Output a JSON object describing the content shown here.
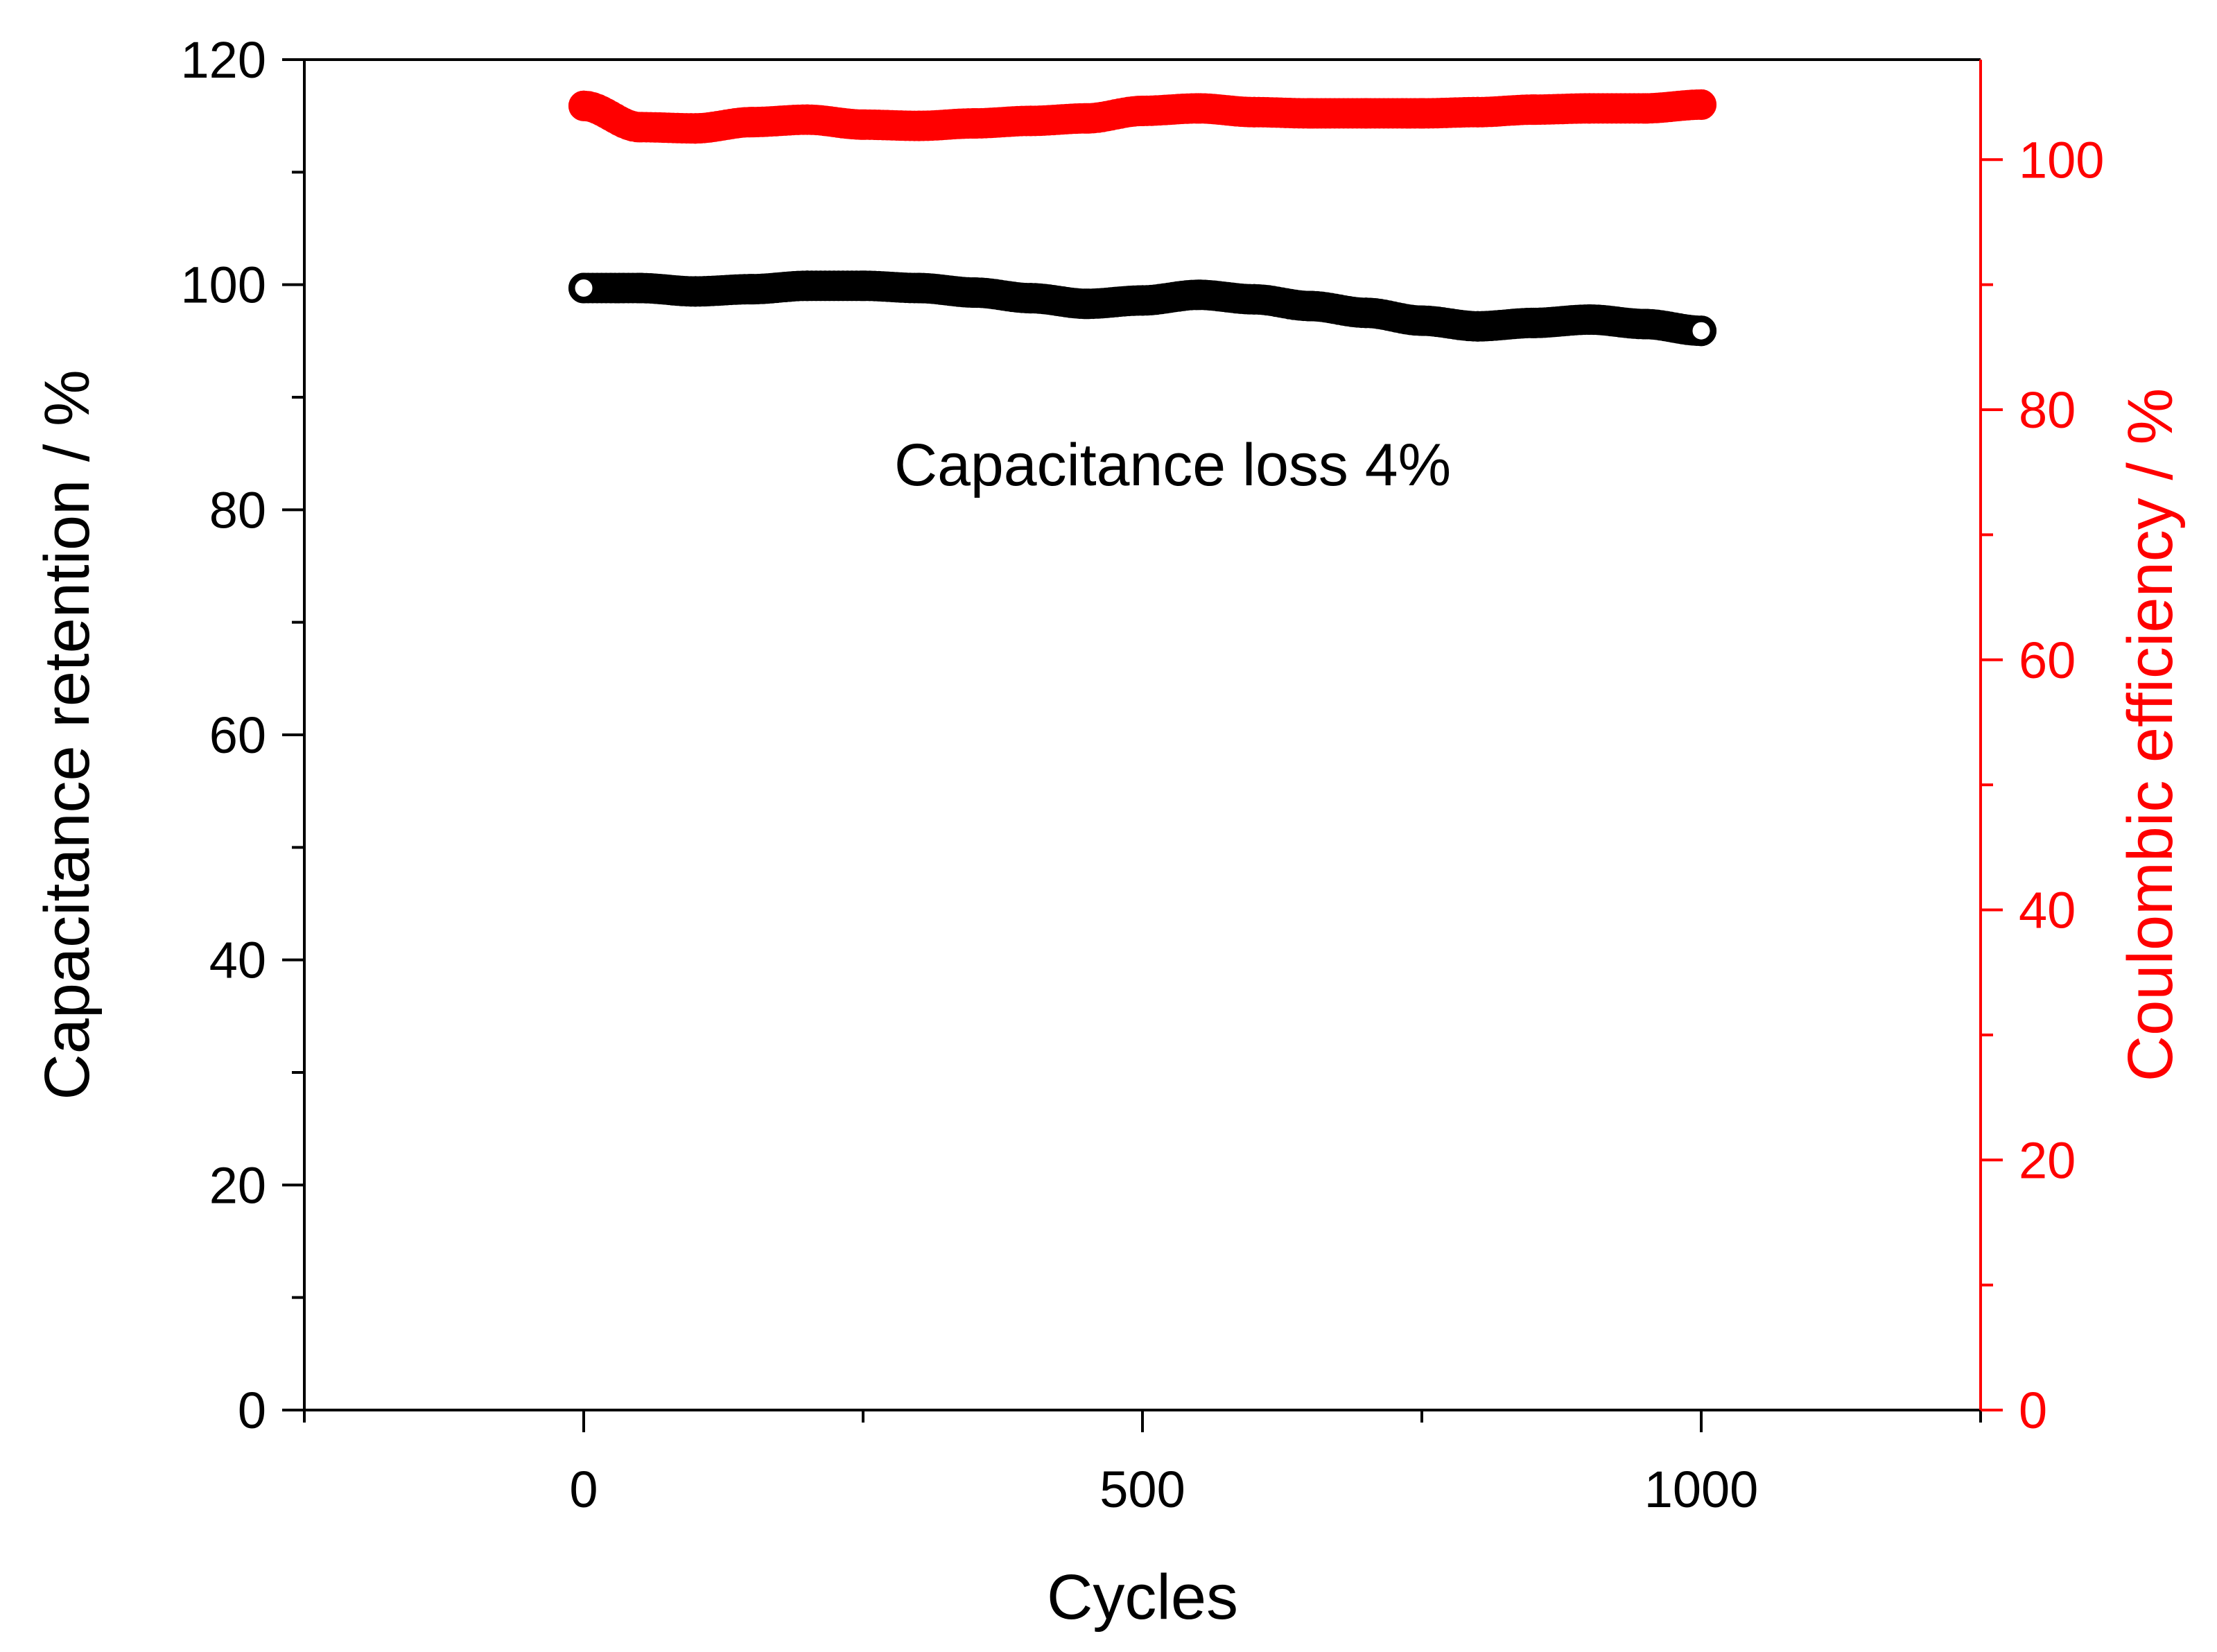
{
  "chart_data": {
    "type": "scatter",
    "xlabel": "Cycles",
    "ylabel": "Capacitance retention / %",
    "y2label": "Coulombic efficiency / %",
    "annotation": "Capacitance loss 4%",
    "xlim": [
      -250,
      1250
    ],
    "ylim": [
      0,
      120
    ],
    "y2lim": [
      0,
      108
    ],
    "xticks": [
      0,
      500,
      1000
    ],
    "yticks": [
      0,
      20,
      40,
      60,
      80,
      100,
      120
    ],
    "y2ticks": [
      0,
      20,
      40,
      60,
      80,
      100
    ],
    "grid": false,
    "colors": {
      "retention": "#000000",
      "efficiency": "#ff0000",
      "axes": "#000000"
    },
    "series": [
      {
        "axis": "left",
        "color": "#000000",
        "x": [
          0,
          50,
          100,
          150,
          200,
          250,
          300,
          350,
          400,
          450,
          500,
          550,
          600,
          650,
          700,
          750,
          800,
          850,
          900,
          950,
          1000
        ],
        "y": [
          99.7,
          99.7,
          99.4,
          99.6,
          99.9,
          99.9,
          99.7,
          99.3,
          98.8,
          98.3,
          98.6,
          99.1,
          98.7,
          98.1,
          97.5,
          96.8,
          96.3,
          96.6,
          96.9,
          96.5,
          95.9
        ]
      },
      {
        "axis": "right",
        "color": "#ff0000",
        "x": [
          0,
          50,
          100,
          150,
          200,
          250,
          300,
          350,
          400,
          450,
          500,
          550,
          600,
          650,
          700,
          750,
          800,
          850,
          900,
          950,
          1000
        ],
        "y": [
          104.3,
          102.6,
          102.5,
          103.0,
          103.2,
          102.8,
          102.7,
          102.9,
          103.1,
          103.3,
          103.9,
          104.1,
          103.8,
          103.7,
          103.7,
          103.7,
          103.8,
          104.0,
          104.1,
          104.1,
          104.4
        ]
      }
    ]
  }
}
